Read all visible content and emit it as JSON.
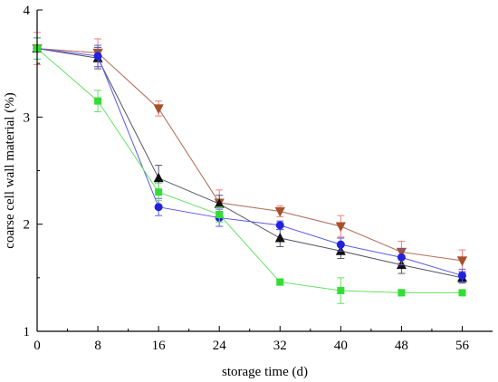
{
  "chart_data": {
    "type": "line",
    "xlabel": "storage time (d)",
    "ylabel": "coarse cell wall material (%)",
    "xlim": [
      0,
      60
    ],
    "ylim": [
      1,
      4
    ],
    "x_ticks": [
      0,
      8,
      16,
      24,
      32,
      40,
      48,
      56
    ],
    "y_ticks": [
      1,
      2,
      3,
      4
    ],
    "grid": false,
    "legend": "none",
    "x": [
      0,
      8,
      16,
      24,
      32,
      40,
      48,
      56
    ],
    "series": [
      {
        "color": "#e8413c",
        "line_color": "#f07f7a",
        "marker": "triangle-down",
        "values": [
          3.64,
          3.6,
          3.08,
          2.2,
          2.12,
          1.98,
          1.74,
          1.66
        ],
        "errors": [
          0.15,
          0.13,
          0.07,
          0.12,
          0.05,
          0.1,
          0.1,
          0.1
        ]
      },
      {
        "color": "#a5522a",
        "line_color": "#b07a66",
        "marker": "triangle-down",
        "values": [
          3.64,
          3.6,
          3.08,
          2.2,
          2.12,
          1.98,
          1.74,
          1.66
        ],
        "errors": [
          0.0,
          0.0,
          0.0,
          0.0,
          0.0,
          0.0,
          0.0,
          0.0
        ]
      },
      {
        "color": "#111111",
        "line_color": "#555566",
        "marker": "triangle-up",
        "values": [
          3.64,
          3.55,
          2.43,
          2.19,
          1.87,
          1.75,
          1.62,
          1.5
        ],
        "errors": [
          0.1,
          0.1,
          0.12,
          0.08,
          0.08,
          0.07,
          0.08,
          0.05
        ]
      },
      {
        "color": "#2222dd",
        "line_color": "#5a5ae6",
        "marker": "circle",
        "values": [
          3.64,
          3.57,
          2.16,
          2.06,
          1.99,
          1.81,
          1.69,
          1.52
        ],
        "errors": [
          0.1,
          0.1,
          0.08,
          0.08,
          0.04,
          0.06,
          0.07,
          0.06
        ]
      },
      {
        "color": "#33dd33",
        "line_color": "#66e066",
        "marker": "square",
        "values": [
          3.64,
          3.15,
          2.3,
          2.09,
          1.46,
          1.38,
          1.36,
          1.36
        ],
        "errors": [
          0.1,
          0.1,
          0.08,
          0.07,
          0.03,
          0.12,
          0.03,
          0.02
        ]
      }
    ]
  }
}
